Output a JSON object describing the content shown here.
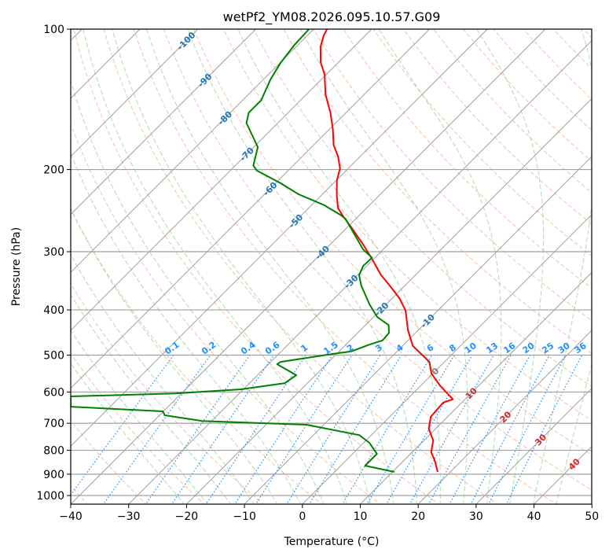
{
  "chart_data": {
    "type": "line",
    "title": "wetPf2_YM08.2026.095.10.57.G09",
    "xlabel": "Temperature (°C)",
    "ylabel": "Pressure (hPa)",
    "xlim": [
      -40,
      50
    ],
    "ylim": [
      1050,
      100
    ],
    "y_scale": "log",
    "grid": true,
    "x_ticks": [
      -40,
      -30,
      -20,
      -10,
      0,
      10,
      20,
      30,
      40,
      50
    ],
    "y_ticks": [
      100,
      200,
      300,
      400,
      500,
      600,
      700,
      800,
      900,
      1000
    ],
    "isotherm_labels": [
      -100,
      -90,
      -80,
      -70,
      -60,
      -50,
      -40,
      -30,
      -20,
      -10,
      0,
      10,
      20,
      30,
      40
    ],
    "mixing_ratio_labels": [
      "0.1",
      "0.2",
      "0.4",
      "0.6",
      "1",
      "1.5",
      "2",
      "3",
      "4",
      "6",
      "8",
      "10",
      "13",
      "16",
      "20",
      "25",
      "30",
      "36"
    ],
    "colors": {
      "temperature": "#ff0000",
      "dewpoint": "#008000",
      "isotherm": "#a0a0a0",
      "dry_adiabat": "#f4a582",
      "moist_adiabat": "#9fcf9f",
      "mixing_ratio": "#1e90ff",
      "label_negative": "#1f77b4",
      "label_zero": "#808080",
      "label_positive": "#d62728"
    },
    "series": [
      {
        "name": "Temperature",
        "pressure": [
          890,
          839,
          808,
          762,
          719,
          678,
          632,
          622,
          581,
          548,
          517,
          497,
          478,
          442,
          401,
          378,
          356,
          337,
          312,
          289,
          267,
          252,
          242,
          228,
          211,
          199,
          188,
          177,
          164,
          151,
          138,
          125,
          118,
          109,
          103,
          100
        ],
        "values": [
          17.8,
          15.2,
          13.3,
          11.6,
          8.8,
          7.1,
          6.8,
          7.9,
          3.3,
          -0.2,
          -2.6,
          -5.4,
          -8.2,
          -11.8,
          -15.6,
          -18.7,
          -22.4,
          -25.9,
          -30.1,
          -34.4,
          -39.1,
          -42.6,
          -44.9,
          -47.2,
          -49.9,
          -51.4,
          -53.7,
          -56.6,
          -59.4,
          -62.7,
          -66.7,
          -70.3,
          -73.0,
          -75.8,
          -77.2,
          -77.7
        ]
      },
      {
        "name": "Dewpoint",
        "pressure": [
          890,
          863,
          814,
          783,
          771,
          742,
          705,
          692,
          673,
          660,
          645,
          613,
          604,
          592,
          574,
          552,
          523,
          517,
          497,
          491,
          475,
          465,
          448,
          431,
          414,
          389,
          355,
          337,
          322,
          309,
          297,
          255,
          250,
          238,
          226,
          214,
          201,
          196,
          179,
          159,
          151,
          142,
          128,
          118,
          108,
          100
        ],
        "values": [
          10.3,
          4.2,
          4.2,
          1.9,
          1.0,
          -2.1,
          -13.0,
          -31.7,
          -39.1,
          -40.1,
          -56.8,
          -58.6,
          -41.1,
          -30.4,
          -23.9,
          -23.3,
          -28.5,
          -28.3,
          -20.7,
          -17.9,
          -16.0,
          -14.4,
          -14.6,
          -16.0,
          -19.4,
          -22.9,
          -27.5,
          -29.7,
          -30.6,
          -30.5,
          -33.4,
          -41.8,
          -43.4,
          -48.0,
          -54.1,
          -59.1,
          -65.4,
          -66.9,
          -69.3,
          -75.4,
          -76.8,
          -76.8,
          -78.8,
          -79.9,
          -80.6,
          -80.8
        ]
      }
    ]
  }
}
